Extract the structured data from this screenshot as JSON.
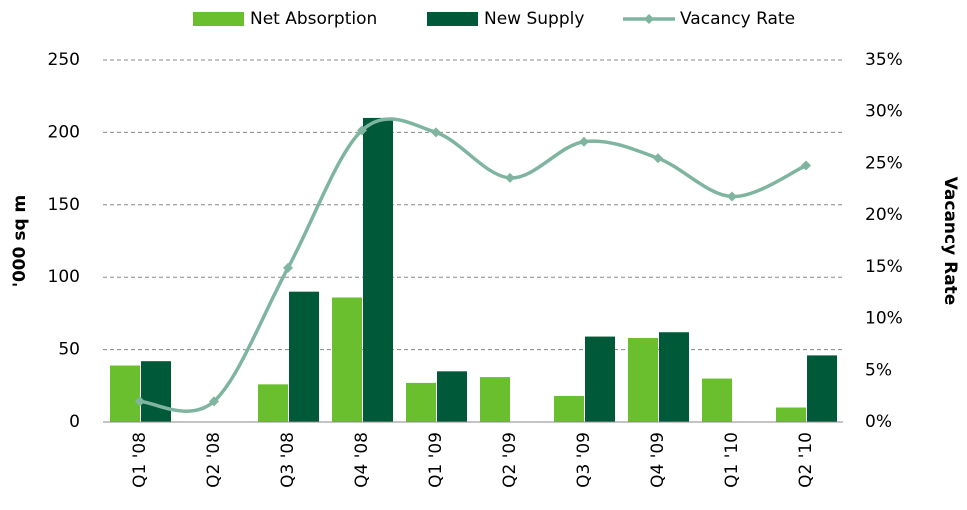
{
  "chart_data": {
    "type": "bar",
    "categories": [
      "Q1 '08",
      "Q2 '08",
      "Q3 '08",
      "Q4 '08",
      "Q1 '09",
      "Q2 '09",
      "Q3 '09",
      "Q4 '09",
      "Q1 '10",
      "Q2 '10"
    ],
    "series": [
      {
        "name": "Net Absorption",
        "color": "#6abf2e",
        "values": [
          39,
          0,
          26,
          86,
          27,
          31,
          18,
          58,
          30,
          10
        ]
      },
      {
        "name": "New Supply",
        "color": "#005a3a",
        "values": [
          42,
          0,
          90,
          210,
          35,
          0,
          59,
          62,
          0,
          46
        ]
      },
      {
        "name": "Vacancy Rate",
        "color": "#7fb5a0",
        "type": "line",
        "axis": "y2",
        "values": [
          2.0,
          2.0,
          14.9,
          28.2,
          28.0,
          23.6,
          27.1,
          25.5,
          21.8,
          24.8
        ]
      }
    ],
    "ylabel": "'000 sq m",
    "y2label": "Vacancy Rate",
    "ylim": [
      0,
      250
    ],
    "yticks": [
      0,
      50,
      100,
      150,
      200,
      250
    ],
    "y2lim": [
      0,
      35
    ],
    "y2ticks": [
      {
        "value": 0,
        "label": "0%"
      },
      {
        "value": 5,
        "label": "5%"
      },
      {
        "value": 10,
        "label": "10%"
      },
      {
        "value": 15,
        "label": "15%"
      },
      {
        "value": 20,
        "label": "20%"
      },
      {
        "value": 25,
        "label": "25%"
      },
      {
        "value": 30,
        "label": "30%"
      },
      {
        "value": 35,
        "label": "35%"
      }
    ],
    "grid": true,
    "legend": "top"
  }
}
